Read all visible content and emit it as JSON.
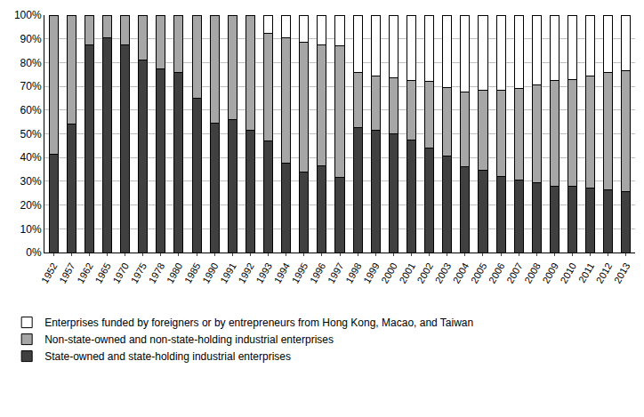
{
  "chart_data": {
    "type": "bar",
    "stacked": true,
    "grid": true,
    "legend": "bottom",
    "categories": [
      "1952",
      "1957",
      "1962",
      "1965",
      "1970",
      "1975",
      "1978",
      "1980",
      "1985",
      "1990",
      "1991",
      "1992",
      "1993",
      "1994",
      "1995",
      "1996",
      "1997",
      "1998",
      "1999",
      "2000",
      "2001",
      "2002",
      "2003",
      "2004",
      "2005",
      "2006",
      "2007",
      "2008",
      "2009",
      "2010",
      "2011",
      "2012",
      "2013"
    ],
    "series": [
      {
        "name": "State-owned and state-holding industrial enterprises",
        "color": "#404040",
        "values": [
          41.5,
          54,
          87.5,
          90.5,
          87.5,
          81,
          77.5,
          76,
          65,
          54.5,
          56,
          51.5,
          47,
          37.5,
          34,
          36.5,
          31.5,
          52.5,
          51.5,
          50,
          47.5,
          44,
          40.5,
          36,
          34.5,
          32,
          30.5,
          29.5,
          28,
          28,
          27,
          26.5,
          25.5
        ]
      },
      {
        "name": "Non-state-owned and non-state-holding industrial enterprises",
        "color": "#a6a6a6",
        "values": [
          58.5,
          46,
          12.5,
          9.5,
          12.5,
          19,
          22.5,
          24,
          35,
          45.5,
          44,
          48.5,
          45.5,
          53,
          54.5,
          51,
          55.5,
          23.5,
          23,
          23.5,
          25,
          28,
          29,
          31.5,
          34,
          36.5,
          38.5,
          41,
          44.5,
          45,
          47.5,
          49.5,
          51
        ]
      },
      {
        "name": "Enterprises funded by foreigners or by entrepreneurs from Hong Kong, Macao, and Taiwan",
        "color": "#ffffff",
        "values": [
          0,
          0,
          0,
          0,
          0,
          0,
          0,
          0,
          0,
          0,
          0,
          0,
          7.5,
          9.5,
          11.5,
          12.5,
          13,
          24,
          25.5,
          26.5,
          27.5,
          28,
          30.5,
          32.5,
          31.5,
          31.5,
          31,
          29.5,
          27.5,
          27,
          25.5,
          24,
          23.5
        ]
      }
    ],
    "ylim": [
      0,
      100
    ],
    "yticks": [
      {
        "value": 0,
        "label": "0%"
      },
      {
        "value": 10,
        "label": "10%"
      },
      {
        "value": 20,
        "label": "20%"
      },
      {
        "value": 30,
        "label": "30%"
      },
      {
        "value": 40,
        "label": "40%"
      },
      {
        "value": 50,
        "label": "50%"
      },
      {
        "value": 60,
        "label": "60%"
      },
      {
        "value": 70,
        "label": "70%"
      },
      {
        "value": 80,
        "label": "80%"
      },
      {
        "value": 90,
        "label": "90%"
      },
      {
        "value": 100,
        "label": "100%"
      }
    ]
  }
}
